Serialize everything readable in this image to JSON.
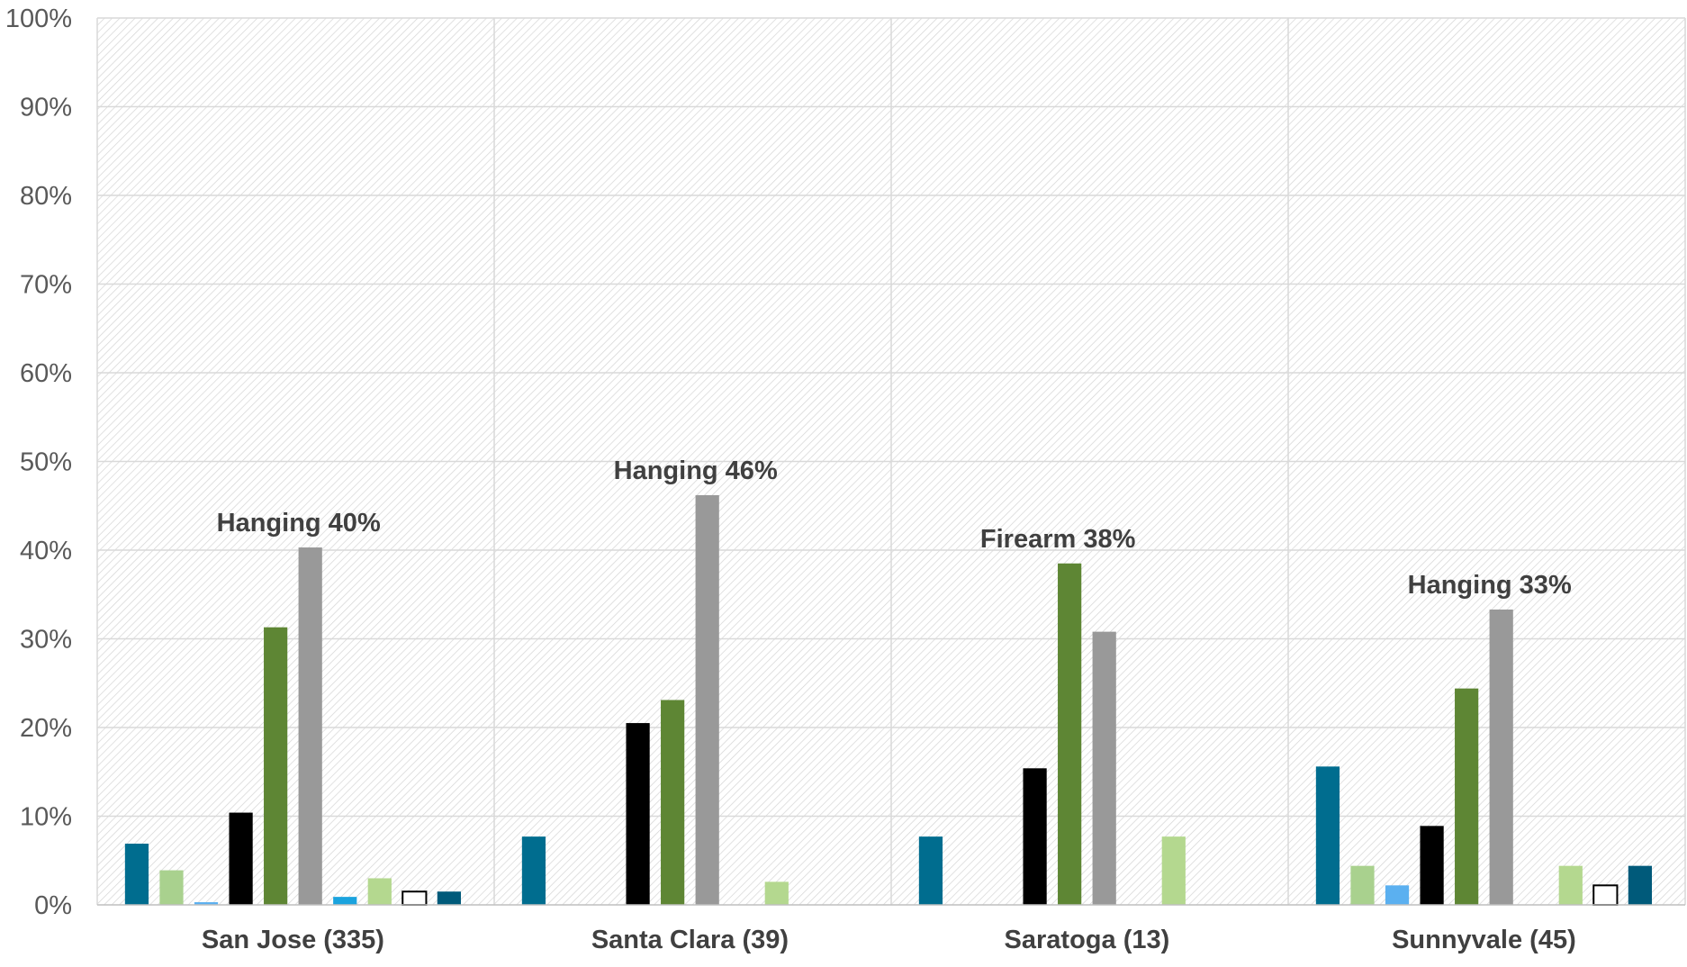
{
  "chart_data": {
    "type": "bar",
    "title": "",
    "xlabel": "",
    "ylabel": "",
    "ylim": [
      0,
      100
    ],
    "y_ticks": [
      "0%",
      "10%",
      "20%",
      "30%",
      "40%",
      "50%",
      "60%",
      "70%",
      "80%",
      "90%",
      "100%"
    ],
    "grid": true,
    "legend": "none",
    "categories": [
      "San Jose (335)",
      "Santa Clara (39)",
      "Saratoga (13)",
      "Sunnyvale (45)"
    ],
    "series": [
      {
        "color": "#006D8F",
        "outline": "",
        "values": [
          6.9,
          7.7,
          7.7,
          15.6
        ]
      },
      {
        "color": "#A9D18E",
        "outline": "",
        "values": [
          3.9,
          0,
          0,
          4.4
        ]
      },
      {
        "color": "#5BB0F0",
        "outline": "",
        "values": [
          0.3,
          0,
          0,
          2.2
        ]
      },
      {
        "color": "#000000",
        "outline": "",
        "values": [
          10.4,
          20.5,
          15.4,
          8.9
        ]
      },
      {
        "color": "#5E8634",
        "outline": "",
        "values": [
          31.3,
          23.1,
          38.5,
          24.4
        ]
      },
      {
        "color": "#999999",
        "outline": "",
        "values": [
          40.3,
          46.2,
          30.8,
          33.3
        ]
      },
      {
        "color": "#1AA3DE",
        "outline": "",
        "values": [
          0.9,
          0,
          0,
          0
        ]
      },
      {
        "color": "#B4D88F",
        "outline": "",
        "values": [
          3.0,
          2.6,
          7.7,
          4.4
        ]
      },
      {
        "color": "#FFFFFF",
        "outline": "#000000",
        "values": [
          1.5,
          0,
          0,
          2.2
        ]
      },
      {
        "color": "#005A7A",
        "outline": "",
        "values": [
          1.5,
          0,
          0,
          4.4
        ]
      }
    ],
    "annotations": [
      {
        "category": "San Jose (335)",
        "text": "Hanging 40%",
        "value": 40.3
      },
      {
        "category": "Santa Clara (39)",
        "text": "Hanging 46%",
        "value": 46.2
      },
      {
        "category": "Saratoga (13)",
        "text": "Firearm 38%",
        "value": 38.5
      },
      {
        "category": "Sunnyvale (45)",
        "text": "Hanging 33%",
        "value": 33.3
      }
    ]
  }
}
